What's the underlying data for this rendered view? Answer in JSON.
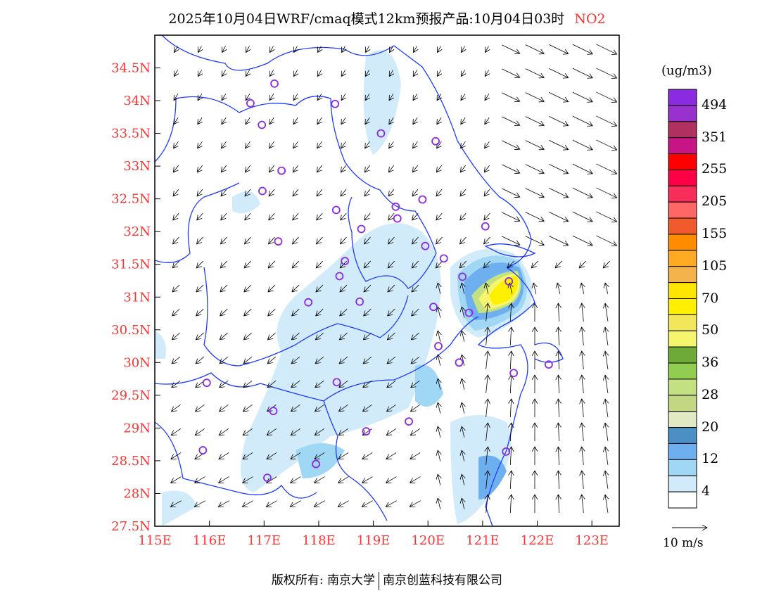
{
  "title": {
    "main": "2025年10月04日WRF/cmaq模式12km预报产品:10月04日03时",
    "species": "NO2"
  },
  "axes": {
    "lon_ticks": [
      "115E",
      "116E",
      "117E",
      "118E",
      "119E",
      "120E",
      "121E",
      "122E",
      "123E"
    ],
    "lon_values": [
      115,
      116,
      117,
      118,
      119,
      120,
      121,
      122,
      123
    ],
    "lat_ticks": [
      "27.5N",
      "28N",
      "28.5N",
      "29N",
      "29.5N",
      "30N",
      "30.5N",
      "31N",
      "31.5N",
      "32N",
      "32.5N",
      "33N",
      "33.5N",
      "34N",
      "34.5N"
    ],
    "lat_values": [
      27.5,
      28,
      28.5,
      29,
      29.5,
      30,
      30.5,
      31,
      31.5,
      32,
      32.5,
      33,
      33.5,
      34,
      34.5
    ],
    "lon_range": [
      115,
      123.5
    ],
    "lat_range": [
      27.5,
      35.0
    ],
    "tick_color": "#ff3333"
  },
  "colorbar": {
    "unit": "(ug/m3)",
    "colors_top_to_bottom": [
      "#8a2be2",
      "#9932cc",
      "#b03060",
      "#c71585",
      "#ff0000",
      "#ff0046",
      "#f72d5a",
      "#ff6666",
      "#f05a2d",
      "#ff8c00",
      "#ffaa22",
      "#f5b44b",
      "#ffe600",
      "#fff000",
      "#f2e65a",
      "#f5f56e",
      "#6eaa37",
      "#91cd50",
      "#c3e182",
      "#c3d782",
      "#e1e9c3",
      "#4b8fc3",
      "#6eaff0",
      "#a0d7f5",
      "#d2ebfa",
      "#ffffff"
    ],
    "labels_top_to_bottom": [
      "494",
      "351",
      "255",
      "205",
      "155",
      "105",
      "70",
      "50",
      "36",
      "28",
      "20",
      "12",
      "4"
    ]
  },
  "wind_scale": {
    "label": "10 m/s"
  },
  "stations": [
    [
      117.19,
      34.26
    ],
    [
      116.75,
      33.96
    ],
    [
      118.3,
      33.95
    ],
    [
      116.96,
      33.63
    ],
    [
      119.14,
      33.5
    ],
    [
      120.14,
      33.38
    ],
    [
      117.32,
      32.93
    ],
    [
      116.97,
      32.62
    ],
    [
      119.9,
      32.49
    ],
    [
      118.32,
      32.33
    ],
    [
      119.41,
      32.38
    ],
    [
      119.44,
      32.2
    ],
    [
      118.78,
      32.04
    ],
    [
      121.05,
      32.08
    ],
    [
      117.26,
      31.85
    ],
    [
      119.95,
      31.78
    ],
    [
      120.29,
      31.59
    ],
    [
      118.48,
      31.55
    ],
    [
      118.38,
      31.32
    ],
    [
      120.63,
      31.31
    ],
    [
      121.48,
      31.24
    ],
    [
      117.81,
      30.92
    ],
    [
      118.75,
      30.93
    ],
    [
      120.1,
      30.85
    ],
    [
      120.75,
      30.76
    ],
    [
      120.19,
      30.25
    ],
    [
      120.57,
      30.0
    ],
    [
      121.57,
      29.84
    ],
    [
      122.21,
      29.97
    ],
    [
      115.95,
      29.69
    ],
    [
      118.33,
      29.7
    ],
    [
      117.17,
      29.26
    ],
    [
      119.65,
      29.1
    ],
    [
      118.87,
      28.95
    ],
    [
      115.88,
      28.66
    ],
    [
      121.43,
      28.64
    ],
    [
      117.95,
      28.45
    ],
    [
      117.06,
      28.24
    ]
  ],
  "footer": {
    "left": "版权所有: 南京大学",
    "right": "南京创蓝科技有限公司"
  }
}
